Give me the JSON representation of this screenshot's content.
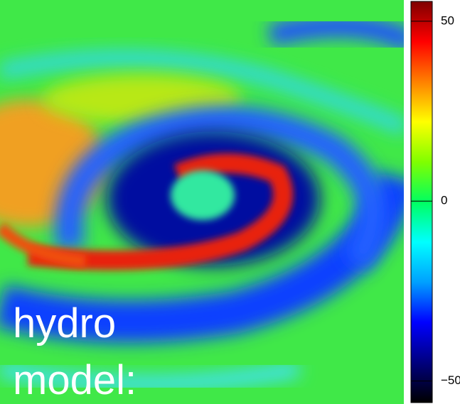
{
  "chart_data": {
    "type": "heatmap",
    "annotation": [
      "hydro",
      "model:"
    ],
    "colorbar": {
      "lim": [
        -56,
        55.5
      ],
      "ticks": [
        {
          "value": -50,
          "label": "−50"
        },
        0,
        50
      ],
      "colormap": [
        "#000000",
        "#00007f",
        "#0000ff",
        "#00a0ff",
        "#00ffff",
        "#00ff60",
        "#80ff00",
        "#ffff00",
        "#ff8000",
        "#ff0000",
        "#7f0000"
      ]
    }
  }
}
